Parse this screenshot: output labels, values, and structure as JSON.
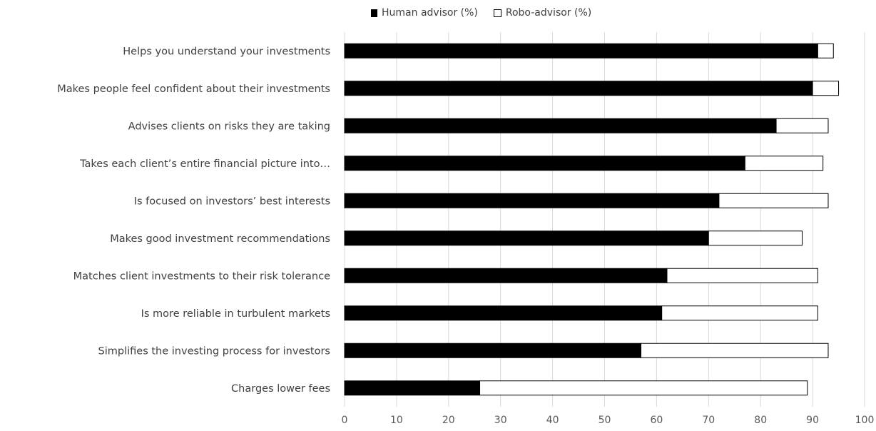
{
  "chart_data": {
    "type": "bar",
    "orientation": "horizontal",
    "stacked": true,
    "categories": [
      "Helps you understand  your investments",
      "Makes people feel confident  about their investments",
      "Advises clients  on risks they are taking",
      "Takes each client’s entire financial  picture into…",
      "Is focused  on investors’ best interests",
      "Makes good investment recommendations",
      "Matches client investments to their risk tolerance",
      "Is more reliable in turbulent  markets",
      "Simplifies the investing process for investors",
      "Charges lower fees"
    ],
    "series": [
      {
        "name": "Human advisor (%)",
        "values": [
          91,
          90,
          83,
          77,
          72,
          70,
          62,
          61,
          57,
          26
        ],
        "color": "#000000"
      },
      {
        "name": "Robo-advisor (%)",
        "values": [
          3,
          5,
          10,
          15,
          21,
          18,
          29,
          30,
          36,
          63
        ],
        "color": "#ffffff"
      }
    ],
    "x_ticks": [
      "0",
      "10",
      "20",
      "30",
      "40",
      "50",
      "60",
      "70",
      "80",
      "90",
      "100"
    ],
    "xlim": [
      0,
      100
    ],
    "grid": true,
    "legend_position": "top"
  }
}
